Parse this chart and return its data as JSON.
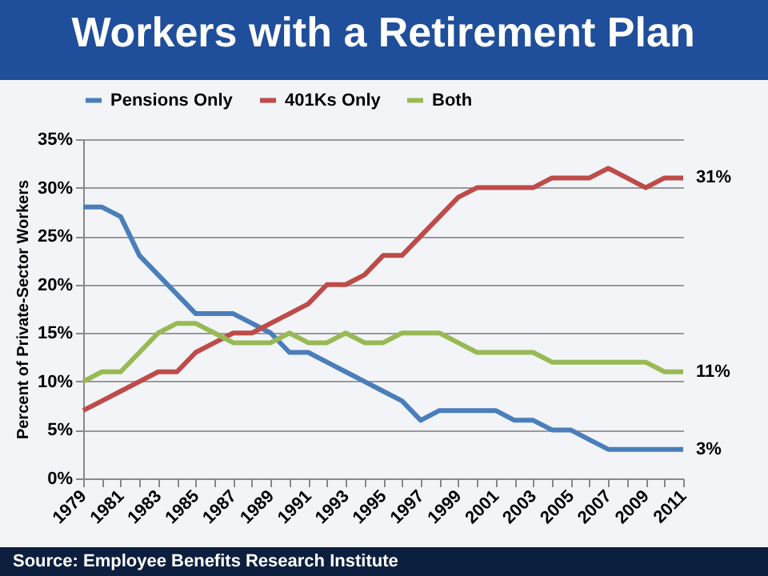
{
  "chart_data": {
    "type": "line",
    "title": "Workers with a Retirement Plan",
    "ylabel": "Percent of Private-Sector Workers",
    "categories": [
      "1979",
      null,
      "1981",
      null,
      "1983",
      null,
      "1985",
      null,
      "1987",
      null,
      "1989",
      null,
      "1991",
      null,
      "1993",
      null,
      "1995",
      null,
      "1997",
      null,
      "1999",
      null,
      "2001",
      null,
      "2003",
      null,
      "2005",
      null,
      "2007",
      null,
      "2009",
      null,
      "2011"
    ],
    "series": [
      {
        "name": "Pensions Only",
        "color": "#4a7ebb",
        "values": [
          28,
          28,
          27,
          23,
          21,
          19,
          17,
          17,
          17,
          16,
          15,
          13,
          13,
          12,
          11,
          10,
          9,
          8,
          6,
          7,
          7,
          7,
          7,
          6,
          6,
          5,
          5,
          4,
          3,
          3,
          3,
          3,
          3
        ],
        "value_labels": [
          null,
          null,
          null,
          null,
          null,
          null,
          null,
          null,
          null,
          null,
          null,
          null,
          null,
          null,
          null,
          null,
          null,
          null,
          null,
          null,
          null,
          null,
          null,
          null,
          null,
          null,
          null,
          null,
          null,
          null,
          null,
          null,
          "3%"
        ]
      },
      {
        "name": "401Ks Only",
        "color": "#be4b48",
        "values": [
          7,
          8,
          9,
          10,
          11,
          11,
          13,
          14,
          15,
          15,
          16,
          17,
          18,
          20,
          20,
          21,
          23,
          23,
          25,
          27,
          29,
          30,
          30,
          30,
          30,
          31,
          31,
          31,
          32,
          31,
          30,
          31,
          31
        ],
        "value_labels": [
          null,
          null,
          null,
          null,
          null,
          null,
          null,
          null,
          null,
          null,
          null,
          null,
          null,
          null,
          null,
          null,
          null,
          null,
          null,
          null,
          null,
          null,
          null,
          null,
          null,
          null,
          null,
          null,
          null,
          null,
          null,
          null,
          "31%"
        ]
      },
      {
        "name": "Both",
        "color": "#98b954",
        "values": [
          10,
          11,
          11,
          13,
          15,
          16,
          16,
          15,
          14,
          14,
          14,
          15,
          14,
          14,
          15,
          14,
          14,
          15,
          15,
          15,
          14,
          13,
          13,
          13,
          13,
          12,
          12,
          12,
          12,
          12,
          12,
          11,
          11
        ],
        "value_labels": [
          null,
          null,
          null,
          null,
          null,
          null,
          null,
          null,
          null,
          null,
          null,
          null,
          null,
          null,
          null,
          null,
          null,
          null,
          null,
          null,
          null,
          null,
          null,
          null,
          null,
          null,
          null,
          null,
          null,
          null,
          null,
          null,
          "11%"
        ]
      }
    ],
    "ylim": [
      0,
      35
    ],
    "yticks": [
      {
        "value": 0,
        "label": "0%"
      },
      {
        "value": 5,
        "label": "5%"
      },
      {
        "value": 10,
        "label": "10%"
      },
      {
        "value": 15,
        "label": "15%"
      },
      {
        "value": 20,
        "label": "20%"
      },
      {
        "value": 25,
        "label": "25%"
      },
      {
        "value": 30,
        "label": "30%"
      },
      {
        "value": 35,
        "label": "35%"
      }
    ],
    "grid": "y",
    "legend": "top",
    "marker": "none",
    "line_style": "solid",
    "annotations": [
      "Source: Employee Benefits Research Institute"
    ]
  }
}
